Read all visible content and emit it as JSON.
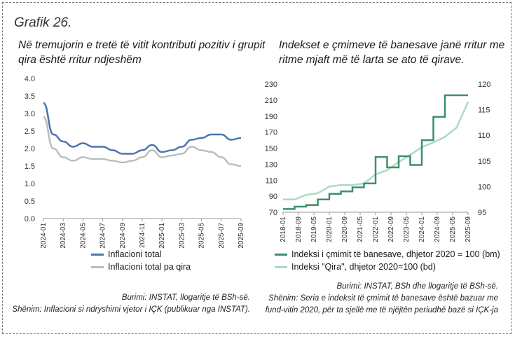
{
  "figure_title": "Grafik 26.",
  "left": {
    "title_line1": "Në tremujorin e tretë të vitit kontributi pozitiv i grupit",
    "title_line2": "qira është rritur ndjeshëm",
    "source": "Burimi: INSTAT, llogaritje të BSh-së.",
    "note": "Shënim: Inflacioni si ndryshimi vjetor i IÇK (publikuar nga INSTAT).",
    "colors": {
      "series1": "#4a76ad",
      "series2": "#bdbdbd"
    }
  },
  "right": {
    "title_line1": "Indekset e çmimeve të banesave janë rritur me",
    "title_line2": "ritme mjaft më të larta se ato të qirave.",
    "source": "Burimi: INSTAT, BSh dhe llogaritje të BSh-së.",
    "note_line1": "Shënim: Seria e indeksit të çmimit të banesave është bazuar me",
    "note_line2": "fund-vitin 2020, për ta sjellë me të njëjtën periudhë bazë si IÇK-ja",
    "colors": {
      "series1": "#3d8f6c",
      "series2": "#a9dcc4"
    }
  },
  "chart_data": [
    {
      "type": "line",
      "title": "Në tremujorin e tretë të vitit kontributi pozitiv i grupit qira është rritur ndjeshëm",
      "xlabel": "",
      "ylabel": "",
      "ylim": [
        0,
        4
      ],
      "yticks": [
        "0.0",
        "0.5",
        "1.0",
        "1.5",
        "2.0",
        "2.5",
        "3.0",
        "3.5",
        "4.0"
      ],
      "x": [
        "2024-01",
        "2024-02",
        "2024-03",
        "2024-04",
        "2024-05",
        "2024-06",
        "2024-07",
        "2024-08",
        "2024-09",
        "2024-10",
        "2024-11",
        "2024-12",
        "2025-01",
        "2025-02",
        "2025-03",
        "2025-04",
        "2025-05",
        "2025-06",
        "2025-07",
        "2025-08",
        "2025-09"
      ],
      "xtick_labels": [
        "2024-01",
        "2024-03",
        "2024-05",
        "2024-07",
        "2024-09",
        "2024-11",
        "2025-01",
        "2025-03",
        "2025-05",
        "2025-07",
        "2025-09"
      ],
      "series": [
        {
          "name": "Inflacioni total",
          "values": [
            3.3,
            2.4,
            2.2,
            2.05,
            2.15,
            2.05,
            2.05,
            1.95,
            1.85,
            1.85,
            1.95,
            2.1,
            1.9,
            1.95,
            2.05,
            2.25,
            2.3,
            2.4,
            2.4,
            2.25,
            2.3
          ]
        },
        {
          "name": "Inflacioni total pa qira",
          "values": [
            2.9,
            2.0,
            1.75,
            1.65,
            1.75,
            1.7,
            1.7,
            1.65,
            1.6,
            1.65,
            1.75,
            1.95,
            1.75,
            1.8,
            1.85,
            2.05,
            1.95,
            1.9,
            1.75,
            1.55,
            1.5
          ]
        }
      ],
      "legend": "bottom"
    },
    {
      "type": "line",
      "title": "Indekset e çmimeve të banesave janë rritur me ritme mjaft më të larta se ato të qirave.",
      "xlabel": "",
      "ylabel": "",
      "ylim": [
        70,
        230
      ],
      "yticks": [
        "70",
        "90",
        "110",
        "130",
        "150",
        "170",
        "190",
        "210",
        "230"
      ],
      "y2lim": [
        95,
        120
      ],
      "y2ticks": [
        "95",
        "100",
        "105",
        "110",
        "115",
        "120"
      ],
      "x": [
        "2018-01",
        "2018-07",
        "2019-01",
        "2019-07",
        "2020-01",
        "2020-07",
        "2021-01",
        "2021-07",
        "2022-01",
        "2022-07",
        "2023-01",
        "2023-07",
        "2024-01",
        "2024-07",
        "2025-01",
        "2025-07",
        "2025-09"
      ],
      "xtick_labels": [
        "2018-01",
        "2018-09",
        "2019-05",
        "2020-01",
        "2020-09",
        "2021-05",
        "2022-01",
        "2022-09",
        "2023-05",
        "2024-01",
        "2024-09",
        "2025-05",
        "2025-09"
      ],
      "series": [
        {
          "name": "Indeksi i çmimit të banesave, dhjetor 2020 = 100 (bm)",
          "axis": "left",
          "values": [
            74,
            77,
            79,
            86,
            93,
            96,
            101,
            106,
            139,
            126,
            140,
            129,
            160,
            189,
            216,
            216,
            216
          ]
        },
        {
          "name": "Indeksi \"Qira\", dhjetor 2020=100 (bd)",
          "axis": "right",
          "values": [
            97.5,
            97.5,
            98.4,
            98.7,
            100.0,
            100.3,
            100.3,
            100.6,
            102.4,
            103.2,
            104.8,
            106.2,
            107.7,
            108.6,
            109.7,
            111.5,
            116.5
          ]
        }
      ],
      "legend": "bottom"
    }
  ]
}
